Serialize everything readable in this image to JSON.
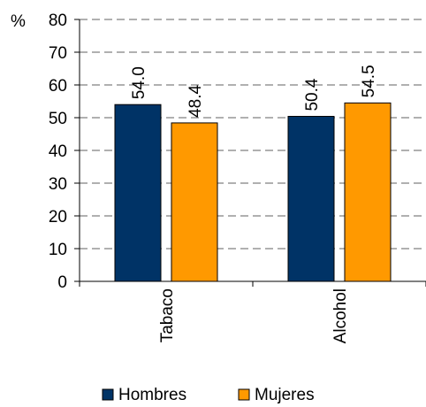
{
  "chart_data": {
    "type": "bar",
    "categories": [
      "Tabaco",
      "Alcohol"
    ],
    "series": [
      {
        "name": "Hombres",
        "values": [
          54.0,
          50.4
        ],
        "color": "#003366"
      },
      {
        "name": "Mujeres",
        "values": [
          48.4,
          54.5
        ],
        "color": "#FF9900"
      }
    ],
    "data_labels": [
      [
        "54.0",
        "50.4"
      ],
      [
        "48.4",
        "54.5"
      ]
    ],
    "ylabel": "%",
    "ylim": [
      0,
      80
    ],
    "yticks": [
      0,
      10,
      20,
      30,
      40,
      50,
      60,
      70,
      80
    ],
    "grid": true,
    "legend": "bottom"
  }
}
